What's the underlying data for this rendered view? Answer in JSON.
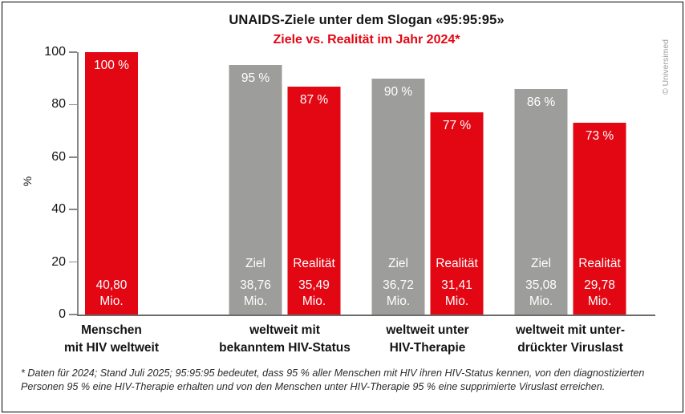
{
  "header": {
    "title": "UNAIDS-Ziele unter dem Slogan «95:95:95»",
    "subtitle": "Ziele vs. Realität im Jahr 2024*"
  },
  "watermark": "© Universimed",
  "footnote": "* Daten für 2024; Stand Juli 2025; 95:95:95 bedeutet, dass 95 % aller Menschen mit HIV ihren HIV-Status kennen, von den diagnostizierten Personen 95 % eine HIV-Therapie erhalten und von den Menschen unter HIV-Therapie 95 % eine supprimierte Viruslast erreichen.",
  "colors": {
    "ziel_gray": "#9d9d9c",
    "realitaet_red": "#e30613"
  },
  "chart_data": {
    "type": "bar",
    "title": "UNAIDS-Ziele unter dem Slogan «95:95:95»",
    "subtitle": "Ziele vs. Realität im Jahr 2024*",
    "ylabel": "%",
    "ylim": [
      0,
      100
    ],
    "yticks": [
      0,
      20,
      40,
      60,
      80,
      100
    ],
    "grid": false,
    "legend": "in-bar labels (Ziel = gray, Realität = red)",
    "groups": [
      {
        "category": [
          "Menschen",
          "mit HIV weltweit"
        ],
        "bars": [
          {
            "role": "realitaet",
            "percent": 100,
            "percent_label": "100 %",
            "bar_label": "",
            "value": "40,80",
            "unit": "Mio."
          }
        ]
      },
      {
        "category": [
          "weltweit mit",
          "bekanntem HIV-Status"
        ],
        "bars": [
          {
            "role": "ziel",
            "percent": 95,
            "percent_label": "95 %",
            "bar_label": "Ziel",
            "value": "38,76",
            "unit": "Mio."
          },
          {
            "role": "realitaet",
            "percent": 87,
            "percent_label": "87 %",
            "bar_label": "Realität",
            "value": "35,49",
            "unit": "Mio."
          }
        ]
      },
      {
        "category": [
          "weltweit unter",
          "HIV-Therapie"
        ],
        "bars": [
          {
            "role": "ziel",
            "percent": 90,
            "percent_label": "90 %",
            "bar_label": "Ziel",
            "value": "36,72",
            "unit": "Mio."
          },
          {
            "role": "realitaet",
            "percent": 77,
            "percent_label": "77 %",
            "bar_label": "Realität",
            "value": "31,41",
            "unit": "Mio."
          }
        ]
      },
      {
        "category": [
          "weltweit mit unter-",
          "drückter Viruslast"
        ],
        "bars": [
          {
            "role": "ziel",
            "percent": 86,
            "percent_label": "86 %",
            "bar_label": "Ziel",
            "value": "35,08",
            "unit": "Mio."
          },
          {
            "role": "realitaet",
            "percent": 73,
            "percent_label": "73 %",
            "bar_label": "Realität",
            "value": "29,78",
            "unit": "Mio."
          }
        ]
      }
    ]
  }
}
